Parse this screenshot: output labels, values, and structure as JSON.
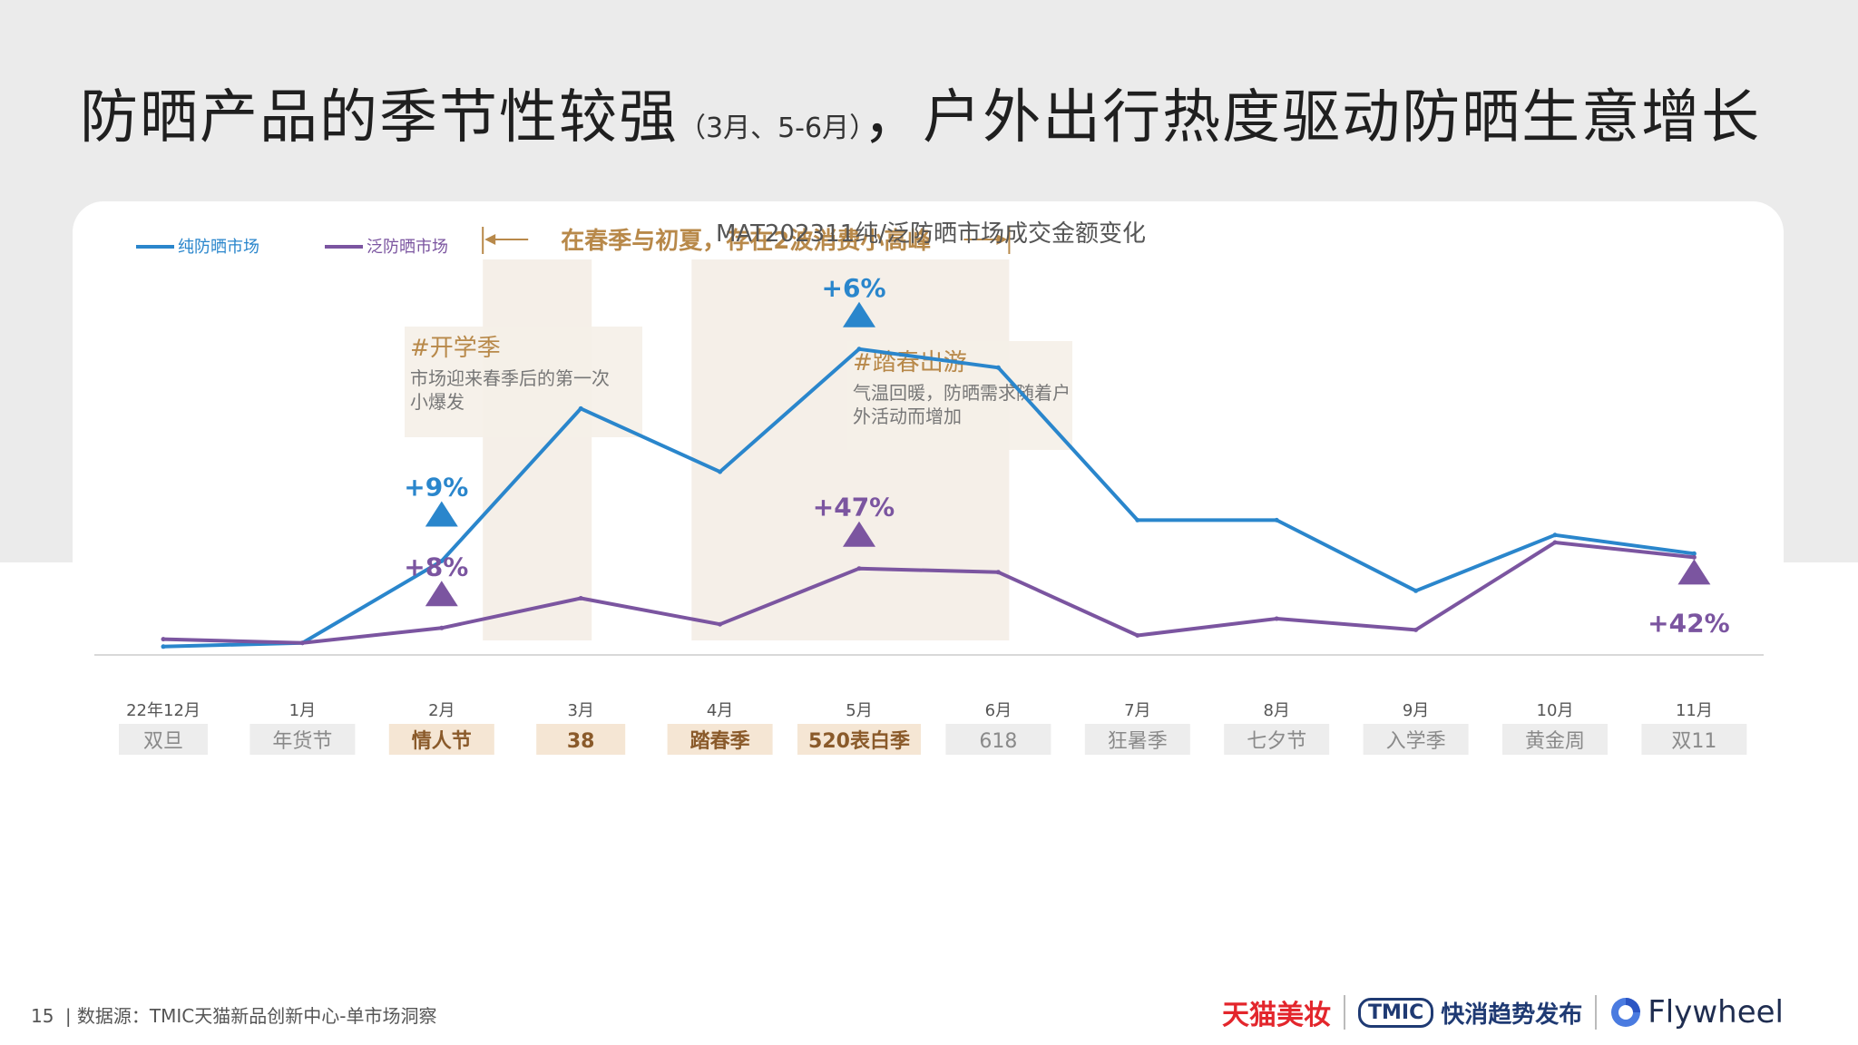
{
  "slide": {
    "title_main": "防晒产品的季节性较强",
    "title_paren": "（3月、5-6月）",
    "title_rest": "，户外出行热度驱动防晒生意增长"
  },
  "footer": {
    "page": "15",
    "divider": "|",
    "source": "数据源：TMIC天猫新品创新中心-单市场洞察"
  },
  "brands": {
    "tmall": "天猫美妆",
    "tmic_box": "TMIC",
    "tmic_text": "快消趋势发布",
    "flywheel": "Flywheel"
  },
  "chart_data": {
    "type": "line",
    "title": "MAT202311纯/泛防晒市场成交金额变化",
    "categories": [
      "22年12月",
      "1月",
      "2月",
      "3月",
      "4月",
      "5月",
      "6月",
      "7月",
      "8月",
      "9月",
      "10月",
      "11月"
    ],
    "category_tags": [
      "双旦",
      "年货节",
      "情人节",
      "38",
      "踏春季",
      "520表白季",
      "618",
      "狂暑季",
      "七夕节",
      "入学季",
      "黄金周",
      "双11"
    ],
    "highlighted_tags": [
      "情人节",
      "38",
      "踏春季",
      "520表白季"
    ],
    "ylim": [
      0,
      100
    ],
    "legend_position": "top-left",
    "series": [
      {
        "name": "纯防晒市场",
        "color": "#2a86cc",
        "values": [
          12,
          13,
          35,
          76,
          59,
          92,
          87,
          46,
          46,
          27,
          42,
          37
        ]
      },
      {
        "name": "泛防晒市场",
        "color": "#7b55a0",
        "values": [
          14,
          13,
          17,
          25,
          18,
          33,
          32,
          15,
          19.5,
          16.5,
          40,
          36
        ]
      }
    ],
    "highlight_spans": [
      {
        "from": 3,
        "to": 3
      },
      {
        "from": 4.5,
        "to": 6
      }
    ],
    "growth_markers": [
      {
        "series": 0,
        "index": 2,
        "label": "+9%",
        "direction": "up",
        "label_side": "above"
      },
      {
        "series": 1,
        "index": 2,
        "label": "+8%",
        "direction": "up",
        "label_side": "above"
      },
      {
        "series": 0,
        "index": 5,
        "label": "+6%",
        "direction": "up",
        "label_side": "above"
      },
      {
        "series": 1,
        "index": 5,
        "label": "+47%",
        "direction": "up",
        "label_side": "above"
      },
      {
        "series": 1,
        "index": 11,
        "label": "+42%",
        "direction": "up",
        "label_side": "below"
      }
    ],
    "bracket_annotation": "在春季与初夏，存在2波消费小高峰",
    "callouts": [
      {
        "title": "#开学季",
        "lines": [
          "市场迎来春季后的第一次",
          "小爆发"
        ]
      },
      {
        "title": "#踏春出游",
        "lines": [
          "气温回暖，防晒需求随着户",
          "外活动而增加"
        ]
      }
    ]
  }
}
